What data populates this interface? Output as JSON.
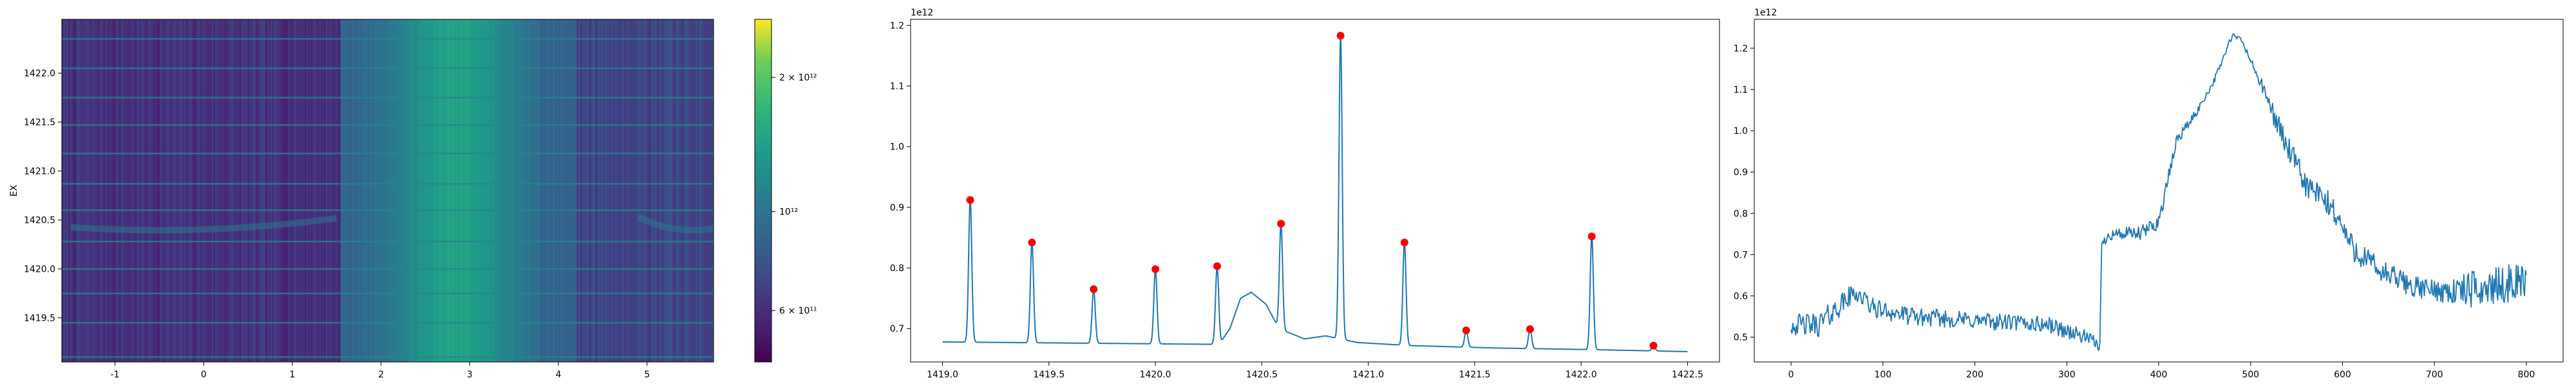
{
  "chart_data": [
    {
      "type": "heatmap",
      "ylabel": "EX",
      "xlabel": "",
      "title": "",
      "xlim": [
        -1.6,
        5.75
      ],
      "ylim": [
        1419.05,
        1422.55
      ],
      "xticks": [
        -1,
        0,
        1,
        2,
        3,
        4,
        5
      ],
      "yticks": [
        1419.5,
        1420.0,
        1420.5,
        1421.0,
        1421.5,
        1422.0
      ],
      "ytick_labels": [
        "1419.5",
        "1420.0",
        "1420.5",
        "1421.0",
        "1421.5",
        "1422.0"
      ],
      "colormap": "viridis",
      "colorbar": {
        "scale": "log",
        "vmin": 460000000000.0,
        "vmax": 2700000000000.0,
        "ticks": [
          {
            "value": 600000000000.0,
            "label": "6 × 10¹¹"
          },
          {
            "value": 1000000000000.0,
            "label": "10¹²"
          },
          {
            "value": 2000000000000.0,
            "label": "2 × 10¹²"
          }
        ]
      },
      "features": {
        "dark_left_region_x": [
          -1.6,
          1.55
        ],
        "bright_band_center_x": 2.85,
        "arc_line_y": 1420.4,
        "horizontal_lines_y": [
          1419.1,
          1419.45,
          1419.75,
          1420.0,
          1420.28,
          1420.6,
          1420.87,
          1421.18,
          1421.47,
          1421.75,
          1422.05,
          1422.35
        ]
      }
    },
    {
      "type": "line",
      "title": "",
      "xlabel": "",
      "ylabel": "",
      "offset_text": "1e12",
      "xlim": [
        1418.85,
        1422.65
      ],
      "ylim": [
        0.645,
        1.21
      ],
      "xticks": [
        1419.0,
        1419.5,
        1420.0,
        1420.5,
        1421.0,
        1421.5,
        1422.0,
        1422.5
      ],
      "xtick_labels": [
        "1419.0",
        "1419.5",
        "1420.0",
        "1420.5",
        "1421.0",
        "1421.5",
        "1422.0",
        "1422.5"
      ],
      "yticks": [
        0.7,
        0.8,
        0.9,
        1.0,
        1.1,
        1.2
      ],
      "ytick_labels": [
        "0.7",
        "0.8",
        "0.9",
        "1.0",
        "1.1",
        "1.2"
      ],
      "line_color": "#1f77b4",
      "marker_color": "#ff0000",
      "baseline": [
        [
          1419.0,
          0.678
        ],
        [
          1420.3,
          0.674
        ],
        [
          1420.35,
          0.7
        ],
        [
          1420.4,
          0.75
        ],
        [
          1420.45,
          0.76
        ],
        [
          1420.52,
          0.74
        ],
        [
          1420.58,
          0.7
        ],
        [
          1420.7,
          0.683
        ],
        [
          1420.8,
          0.688
        ],
        [
          1420.95,
          0.677
        ],
        [
          1421.2,
          0.672
        ],
        [
          1421.6,
          0.668
        ],
        [
          1422.1,
          0.665
        ],
        [
          1422.5,
          0.662
        ]
      ],
      "peaks": [
        {
          "x": 1419.13,
          "y": 0.912
        },
        {
          "x": 1419.42,
          "y": 0.842
        },
        {
          "x": 1419.71,
          "y": 0.765
        },
        {
          "x": 1420.0,
          "y": 0.798
        },
        {
          "x": 1420.29,
          "y": 0.803
        },
        {
          "x": 1420.59,
          "y": 0.873
        },
        {
          "x": 1420.87,
          "y": 1.183
        },
        {
          "x": 1421.17,
          "y": 0.842
        },
        {
          "x": 1421.46,
          "y": 0.697
        },
        {
          "x": 1421.76,
          "y": 0.699
        },
        {
          "x": 1422.05,
          "y": 0.852
        },
        {
          "x": 1422.34,
          "y": 0.672
        }
      ]
    },
    {
      "type": "line",
      "title": "",
      "xlabel": "",
      "ylabel": "",
      "offset_text": "1e12",
      "xlim": [
        -40,
        840
      ],
      "ylim": [
        0.44,
        1.27
      ],
      "xticks": [
        0,
        100,
        200,
        300,
        400,
        500,
        600,
        700,
        800
      ],
      "xtick_labels": [
        "0",
        "100",
        "200",
        "300",
        "400",
        "500",
        "600",
        "700",
        "800"
      ],
      "yticks": [
        0.5,
        0.6,
        0.7,
        0.8,
        0.9,
        1.0,
        1.1,
        1.2
      ],
      "ytick_labels": [
        "0.5",
        "0.6",
        "0.7",
        "0.8",
        "0.9",
        "1.0",
        "1.1",
        "1.2"
      ],
      "line_color": "#1f77b4",
      "n_points": 801,
      "trend": [
        [
          0,
          0.53
        ],
        [
          30,
          0.53
        ],
        [
          50,
          0.57
        ],
        [
          70,
          0.61
        ],
        [
          90,
          0.57
        ],
        [
          130,
          0.55
        ],
        [
          200,
          0.54
        ],
        [
          280,
          0.53
        ],
        [
          320,
          0.5
        ],
        [
          336,
          0.48
        ],
        [
          338,
          0.72
        ],
        [
          345,
          0.75
        ],
        [
          380,
          0.75
        ],
        [
          400,
          0.78
        ],
        [
          410,
          0.88
        ],
        [
          420,
          0.98
        ],
        [
          440,
          1.04
        ],
        [
          460,
          1.12
        ],
        [
          480,
          1.23
        ],
        [
          490,
          1.22
        ],
        [
          510,
          1.12
        ],
        [
          540,
          0.96
        ],
        [
          560,
          0.87
        ],
        [
          590,
          0.81
        ],
        [
          610,
          0.72
        ],
        [
          640,
          0.66
        ],
        [
          680,
          0.62
        ],
        [
          720,
          0.61
        ],
        [
          760,
          0.62
        ],
        [
          800,
          0.64
        ]
      ],
      "noise": [
        [
          0,
          0.025
        ],
        [
          30,
          0.03
        ],
        [
          100,
          0.022
        ],
        [
          300,
          0.02
        ],
        [
          336,
          0.015
        ],
        [
          350,
          0.015
        ],
        [
          400,
          0.02
        ],
        [
          450,
          0.008
        ],
        [
          500,
          0.008
        ],
        [
          530,
          0.03
        ],
        [
          600,
          0.035
        ],
        [
          700,
          0.025
        ],
        [
          740,
          0.045
        ],
        [
          800,
          0.045
        ]
      ]
    }
  ]
}
